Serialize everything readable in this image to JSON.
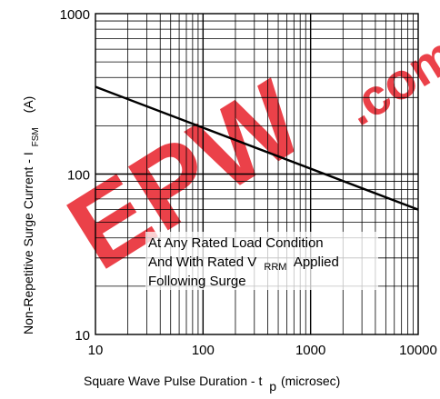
{
  "chart_data": {
    "type": "line",
    "x_scale": "log",
    "y_scale": "log",
    "xlim": [
      10,
      10000
    ],
    "ylim": [
      10,
      1000
    ],
    "x_ticks": [
      "10",
      "100",
      "1000",
      "10000"
    ],
    "y_ticks": [
      "10",
      "100",
      "1000"
    ],
    "xlabel": "Square Wave Pulse Duration - t",
    "xlabel_sub": "p",
    "xlabel_unit": "(microsec)",
    "ylabel": "Non-Repetitive Surge Current - I",
    "ylabel_sub": "FSM",
    "ylabel_unit": "(A)",
    "series": [
      {
        "x": [
          10,
          10000
        ],
        "y": [
          350,
          60
        ]
      }
    ],
    "annotation": {
      "line1": "At Any Rated Load Condition",
      "line2_a": "And With Rated V",
      "line2_sub": "RRM",
      "line2_b": "Applied",
      "line3": "Following Surge"
    },
    "grid": true
  },
  "watermark": {
    "text": "EPW",
    "suffix": ".com",
    "color": "#e8202a"
  },
  "colors": {
    "line": "#000000",
    "grid": "#000000",
    "watermark": "#e8202a"
  }
}
